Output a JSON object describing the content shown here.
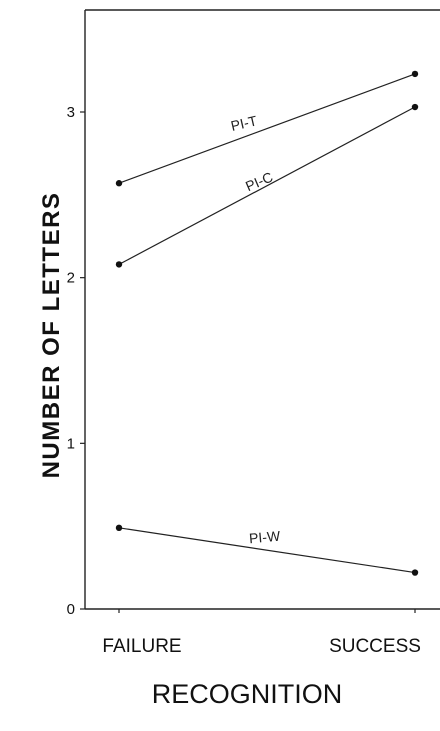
{
  "chart_data": {
    "type": "line",
    "categories": [
      "FAILURE",
      "SUCCESS"
    ],
    "series": [
      {
        "name": "PI-T",
        "values": [
          2.57,
          3.23
        ]
      },
      {
        "name": "PI-C",
        "values": [
          2.08,
          3.03
        ]
      },
      {
        "name": "PI-W",
        "values": [
          0.49,
          0.22
        ]
      }
    ],
    "xlabel": "RECOGNITION",
    "ylabel": "NUMBER OF LETTERS",
    "ylim": [
      0,
      3.6
    ],
    "yticks": [
      "0",
      "1",
      "2",
      "3"
    ],
    "grid": false
  }
}
